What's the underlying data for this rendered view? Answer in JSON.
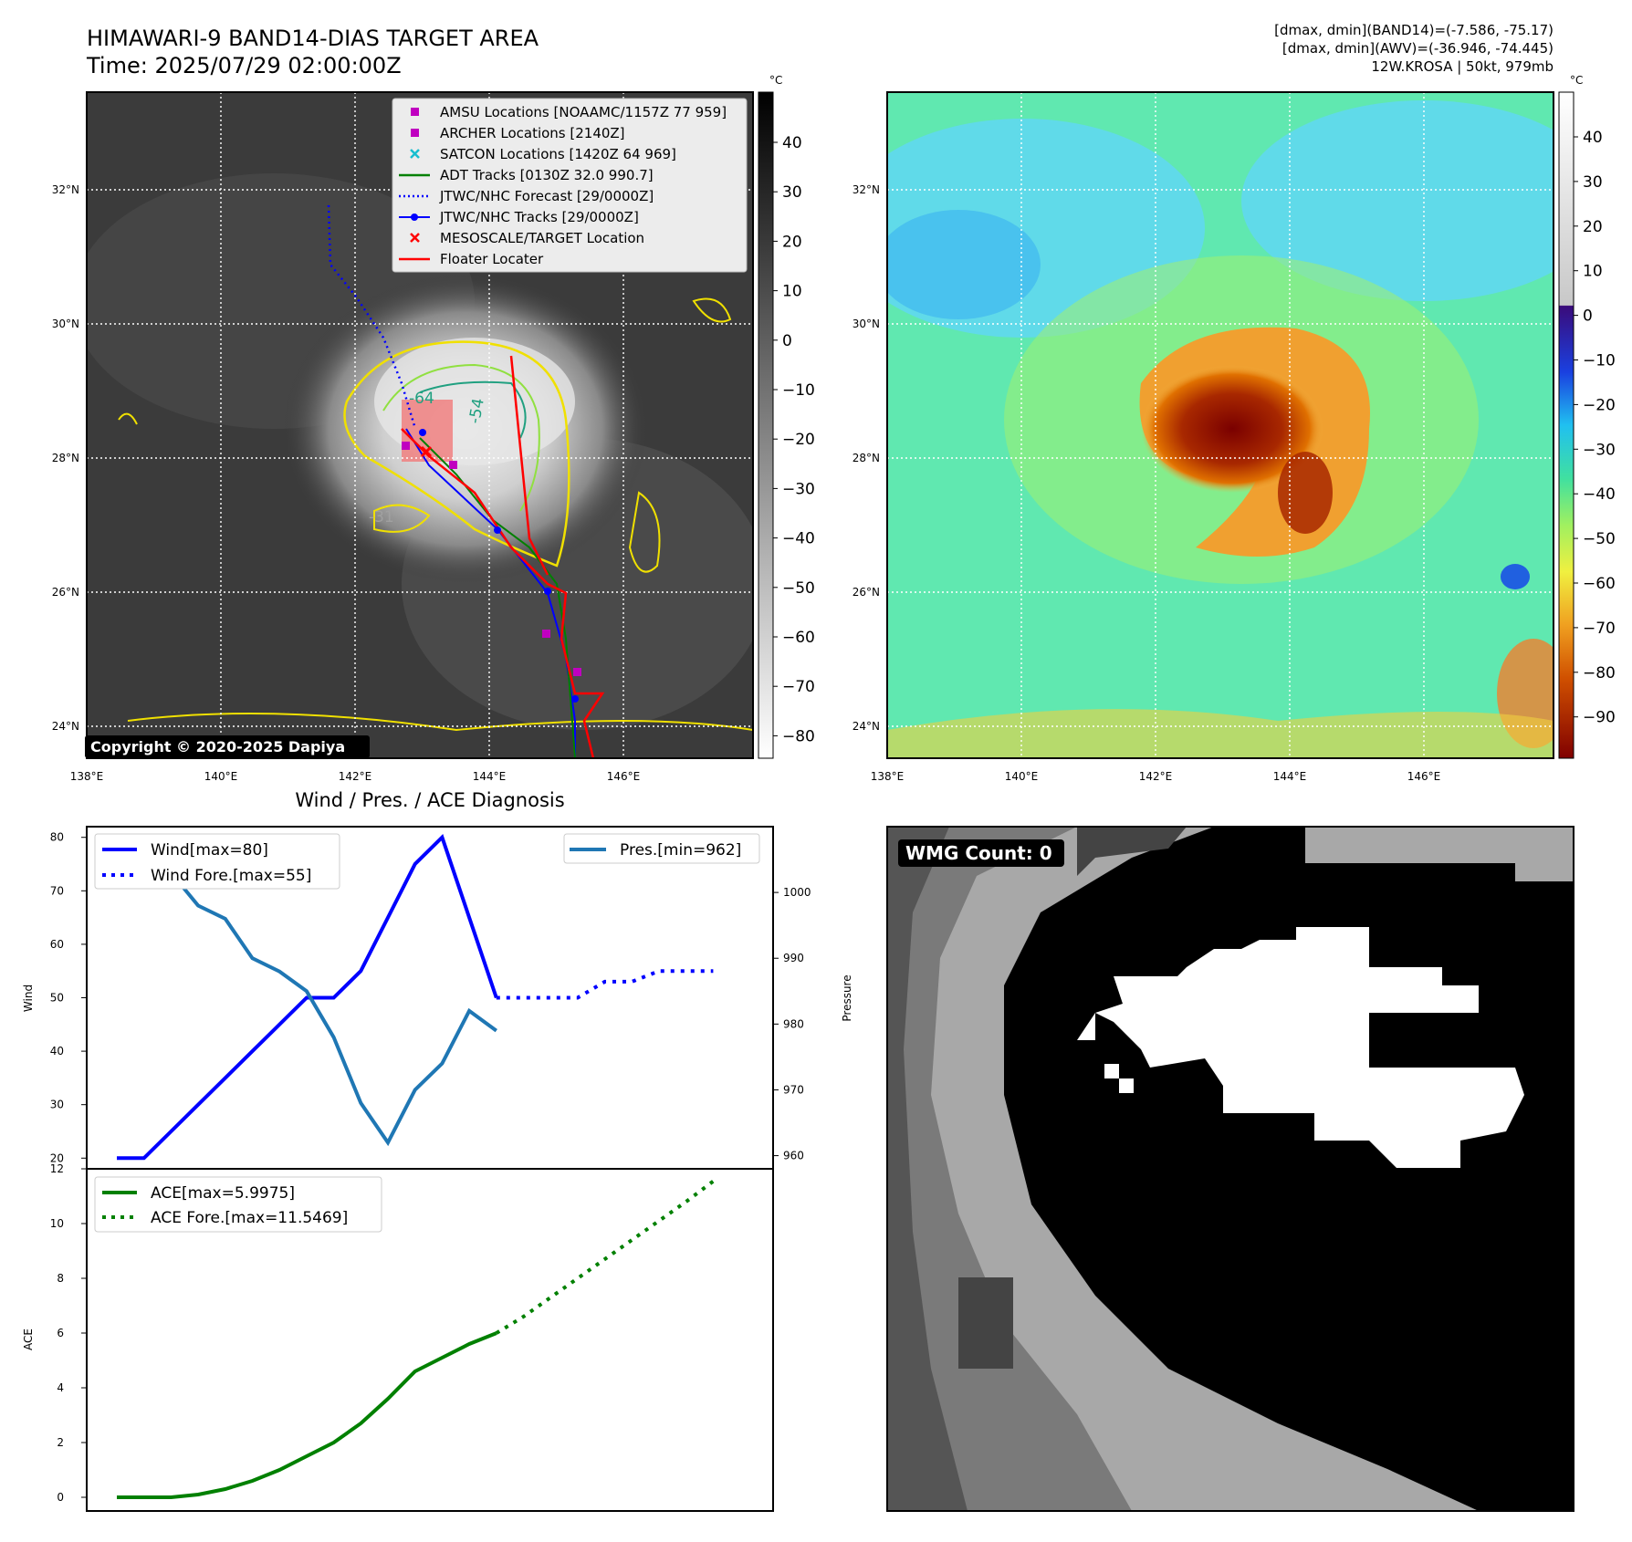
{
  "header": {
    "title_line1": "HIMAWARI-9 BAND14-DIAS TARGET AREA",
    "title_line2": "Time: 2025/07/29 02:00:00Z",
    "info_line1": "[dmax, dmin](BAND14)=(-7.586, -75.17)",
    "info_line2": "[dmax, dmin](AWV)=(-36.946, -74.445)",
    "info_line3": "12W.KROSA | 50kt, 979mb"
  },
  "map_ticks": {
    "lon": [
      "138°E",
      "140°E",
      "142°E",
      "144°E",
      "146°E"
    ],
    "lat": [
      "32°N",
      "30°N",
      "28°N",
      "26°N",
      "24°N"
    ]
  },
  "ir_panel": {
    "legend": [
      {
        "label": "AMSU Locations [NOAAMC/1157Z 77 959]",
        "marker": "square",
        "color": "#c000c0"
      },
      {
        "label": "ARCHER Locations [2140Z]",
        "marker": "square",
        "color": "#c000c0"
      },
      {
        "label": "SATCON Locations [1420Z 64 969]",
        "marker": "x",
        "color": "#17becf"
      },
      {
        "label": "ADT Tracks [0130Z 32.0 990.7]",
        "marker": "line",
        "color": "#008000"
      },
      {
        "label": "JTWC/NHC Forecast [29/0000Z]",
        "marker": "dotted",
        "color": "#0000ff"
      },
      {
        "label": "JTWC/NHC Tracks [29/0000Z]",
        "marker": "line-dot",
        "color": "#0000ff"
      },
      {
        "label": "MESOSCALE/TARGET Location",
        "marker": "x",
        "color": "#ff0000"
      },
      {
        "label": "Floater Locater",
        "marker": "line",
        "color": "#ff0000"
      }
    ],
    "copyright": "Copyright © 2020-2025 Dapiya",
    "contour_labels": [
      "-64",
      "-54",
      "-31"
    ],
    "colorbar_unit": "°C",
    "colorbar_ticks": [
      "40",
      "30",
      "20",
      "10",
      "0",
      "−10",
      "−20",
      "−30",
      "−40",
      "−50",
      "−60",
      "−70",
      "−80"
    ]
  },
  "awv_panel": {
    "colorbar_unit": "°C",
    "colorbar_ticks": [
      "40",
      "30",
      "20",
      "10",
      "0",
      "−10",
      "−20",
      "−30",
      "−40",
      "−50",
      "−60",
      "−70",
      "−80",
      "−90"
    ]
  },
  "wmg_panel": {
    "label": "WMG Count: 0"
  },
  "colors": {
    "wind": "#0000ff",
    "pressure": "#1f77b4",
    "ace": "#008000",
    "floater": "#ff0000"
  },
  "chart_data": [
    {
      "type": "line",
      "title": "Wind / Pres. / ACE Diagnosis",
      "ylabel": "Wind",
      "y2label": "Pressure",
      "ylim": [
        18,
        82
      ],
      "y2lim": [
        958,
        1010
      ],
      "yticks": [
        20,
        30,
        40,
        50,
        60,
        70,
        80
      ],
      "y2ticks": [
        960,
        970,
        980,
        990,
        1000
      ],
      "series": [
        {
          "name": "Wind[max=80]",
          "axis": "left",
          "style": "solid",
          "x": [
            0,
            1,
            2,
            3,
            4,
            5,
            6,
            7,
            8,
            9,
            10,
            11,
            12,
            13,
            14
          ],
          "values": [
            20,
            20,
            25,
            30,
            35,
            40,
            45,
            50,
            50,
            55,
            65,
            75,
            80,
            65,
            50
          ]
        },
        {
          "name": "Wind Fore.[max=55]",
          "axis": "left",
          "style": "dotted",
          "x": [
            14,
            15,
            16,
            17,
            18,
            19,
            20,
            21,
            22
          ],
          "values": [
            50,
            50,
            50,
            50,
            53,
            53,
            55,
            55,
            55
          ]
        },
        {
          "name": "Pres.[min=962]",
          "axis": "right",
          "style": "solid",
          "x": [
            0,
            1,
            2,
            3,
            4,
            5,
            6,
            7,
            8,
            9,
            10,
            11,
            12,
            13,
            14
          ],
          "values": [
            1008,
            1005,
            1003,
            998,
            996,
            990,
            988,
            985,
            978,
            968,
            962,
            970,
            974,
            982,
            979
          ]
        }
      ]
    },
    {
      "type": "line",
      "ylabel": "ACE",
      "ylim": [
        -0.5,
        12
      ],
      "yticks": [
        0,
        2,
        4,
        6,
        8,
        10,
        12
      ],
      "series": [
        {
          "name": "ACE[max=5.9975]",
          "style": "solid",
          "x": [
            0,
            1,
            2,
            3,
            4,
            5,
            6,
            7,
            8,
            9,
            10,
            11,
            12,
            13,
            14
          ],
          "values": [
            0,
            0,
            0,
            0.1,
            0.3,
            0.6,
            1.0,
            1.5,
            2.0,
            2.7,
            3.6,
            4.6,
            5.1,
            5.6,
            5.9975
          ]
        },
        {
          "name": "ACE Fore.[max=11.5469]",
          "style": "dotted",
          "x": [
            14,
            15,
            16,
            17,
            18,
            19,
            20,
            21,
            22
          ],
          "values": [
            5.9975,
            6.6,
            7.3,
            8.0,
            8.7,
            9.4,
            10.1,
            10.8,
            11.5469
          ]
        }
      ]
    }
  ]
}
